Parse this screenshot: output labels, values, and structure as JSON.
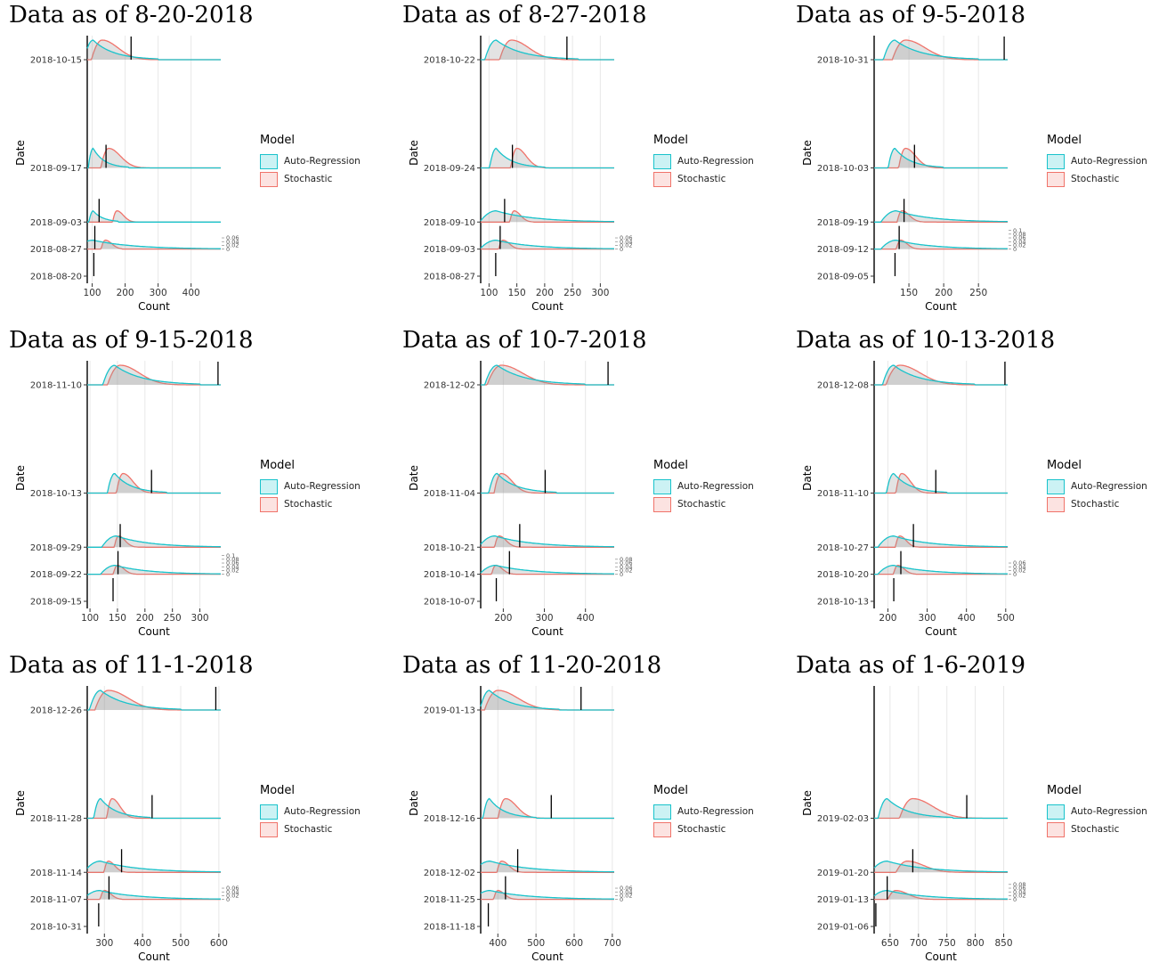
{
  "colors": {
    "auto_regression": "#19c3cb",
    "stochastic": "#f0736a",
    "observed": "#000000",
    "grid": "#e8e8e8"
  },
  "chart_data": [
    {
      "type": "ridgeline-density",
      "title": "Data as of 8-20-2018",
      "xlabel": "Count",
      "ylabel": "Date",
      "legend": {
        "title": "Model",
        "entries": [
          "Auto-Regression",
          "Stochastic"
        ],
        "position": "right"
      },
      "x_ticks": [
        100,
        200,
        300,
        400
      ],
      "xlim": [
        85,
        490
      ],
      "dates": [
        "2018-10-15",
        "2018-09-17",
        "2018-09-03",
        "2018-08-27",
        "2018-08-20"
      ],
      "date_offsets": [
        56,
        28,
        14,
        7,
        0
      ],
      "observed": [
        218,
        142,
        121,
        108,
        105
      ],
      "auto_regression": [
        {
          "peak": 103,
          "end": 300
        },
        {
          "peak": 103,
          "end": 210
        },
        {
          "peak": 103,
          "end": 180
        },
        {
          "peak": 103,
          "end": 490
        }
      ],
      "stochastic": [
        {
          "peak": 130,
          "end": 360
        },
        {
          "peak": 150,
          "end": 320
        },
        {
          "peak": 175,
          "end": 240
        },
        {
          "peak": 140,
          "end": 190
        }
      ],
      "density_ticks": [
        "0.06",
        "0.04",
        "0.02",
        "0"
      ]
    },
    {
      "type": "ridgeline-density",
      "title": "Data as of 8-27-2018",
      "xlabel": "Count",
      "ylabel": "Date",
      "legend": {
        "title": "Model",
        "entries": [
          "Auto-Regression",
          "Stochastic"
        ],
        "position": "right"
      },
      "x_ticks": [
        100,
        150,
        200,
        250,
        300
      ],
      "xlim": [
        85,
        325
      ],
      "dates": [
        "2018-10-22",
        "2018-09-24",
        "2018-09-10",
        "2018-09-03",
        "2018-08-27"
      ],
      "date_offsets": [
        56,
        28,
        14,
        7,
        0
      ],
      "observed": [
        240,
        142,
        128,
        120,
        112
      ],
      "auto_regression": [
        {
          "peak": 113,
          "end": 260
        },
        {
          "peak": 113,
          "end": 200
        },
        {
          "peak": 113,
          "end": 325
        },
        {
          "peak": 113,
          "end": 325
        }
      ],
      "stochastic": [
        {
          "peak": 140,
          "end": 290
        },
        {
          "peak": 150,
          "end": 230
        },
        {
          "peak": 145,
          "end": 180
        },
        {
          "peak": 125,
          "end": 160
        }
      ],
      "density_ticks": [
        "0.06",
        "0.04",
        "0.02",
        "0"
      ]
    },
    {
      "type": "ridgeline-density",
      "title": "Data as of 9-5-2018",
      "xlabel": "Count",
      "ylabel": "Date",
      "legend": {
        "title": "Model",
        "entries": [
          "Auto-Regression",
          "Stochastic"
        ],
        "position": "right"
      },
      "x_ticks": [
        150,
        200,
        250
      ],
      "xlim": [
        100,
        292
      ],
      "dates": [
        "2018-10-31",
        "2018-10-03",
        "2018-09-19",
        "2018-09-12",
        "2018-09-05"
      ],
      "date_offsets": [
        56,
        28,
        14,
        7,
        0
      ],
      "observed": [
        287,
        158,
        143,
        136,
        130
      ],
      "auto_regression": [
        {
          "peak": 130,
          "end": 250
        },
        {
          "peak": 130,
          "end": 200
        },
        {
          "peak": 132,
          "end": 292
        },
        {
          "peak": 132,
          "end": 292
        }
      ],
      "stochastic": [
        {
          "peak": 145,
          "end": 280
        },
        {
          "peak": 145,
          "end": 215
        },
        {
          "peak": 140,
          "end": 190
        },
        {
          "peak": 138,
          "end": 175
        }
      ],
      "density_ticks": [
        "0.1",
        "0.08",
        "0.06",
        "0.04",
        "0.02",
        "0"
      ]
    },
    {
      "type": "ridgeline-density",
      "title": "Data as of 9-15-2018",
      "xlabel": "Count",
      "ylabel": "Date",
      "legend": {
        "title": "Model",
        "entries": [
          "Auto-Regression",
          "Stochastic"
        ],
        "position": "right"
      },
      "x_ticks": [
        100,
        150,
        200,
        250,
        300
      ],
      "xlim": [
        95,
        338
      ],
      "dates": [
        "2018-11-10",
        "2018-10-13",
        "2018-09-29",
        "2018-09-22",
        "2018-09-15"
      ],
      "date_offsets": [
        56,
        28,
        14,
        7,
        0
      ],
      "observed": [
        333,
        212,
        155,
        151,
        142
      ],
      "auto_regression": [
        {
          "peak": 145,
          "end": 300
        },
        {
          "peak": 145,
          "end": 240
        },
        {
          "peak": 148,
          "end": 338
        },
        {
          "peak": 146,
          "end": 338
        }
      ],
      "stochastic": [
        {
          "peak": 155,
          "end": 320
        },
        {
          "peak": 160,
          "end": 245
        },
        {
          "peak": 152,
          "end": 200
        },
        {
          "peak": 150,
          "end": 185
        }
      ],
      "density_ticks": [
        "0.1",
        "0.08",
        "0.06",
        "0.04",
        "0.02",
        "0"
      ]
    },
    {
      "type": "ridgeline-density",
      "title": "Data as of 10-7-2018",
      "xlabel": "Count",
      "ylabel": "Date",
      "legend": {
        "title": "Model",
        "entries": [
          "Auto-Regression",
          "Stochastic"
        ],
        "position": "right"
      },
      "x_ticks": [
        200,
        300,
        400
      ],
      "xlim": [
        145,
        470
      ],
      "dates": [
        "2018-12-02",
        "2018-11-04",
        "2018-10-21",
        "2018-10-14",
        "2018-10-07"
      ],
      "date_offsets": [
        56,
        28,
        14,
        7,
        0
      ],
      "observed": [
        455,
        302,
        240,
        215,
        183
      ],
      "auto_regression": [
        {
          "peak": 185,
          "end": 400
        },
        {
          "peak": 185,
          "end": 330
        },
        {
          "peak": 180,
          "end": 470
        },
        {
          "peak": 182,
          "end": 470
        }
      ],
      "stochastic": [
        {
          "peak": 195,
          "end": 440
        },
        {
          "peak": 195,
          "end": 320
        },
        {
          "peak": 190,
          "end": 270
        },
        {
          "peak": 182,
          "end": 230
        }
      ],
      "density_ticks": [
        "0.08",
        "0.06",
        "0.04",
        "0.02",
        "0"
      ]
    },
    {
      "type": "ridgeline-density",
      "title": "Data as of 10-13-2018",
      "xlabel": "Count",
      "ylabel": "Date",
      "legend": {
        "title": "Model",
        "entries": [
          "Auto-Regression",
          "Stochastic"
        ],
        "position": "right"
      },
      "x_ticks": [
        200,
        300,
        400,
        500
      ],
      "xlim": [
        165,
        505
      ],
      "dates": [
        "2018-12-08",
        "2018-11-10",
        "2018-10-27",
        "2018-10-20",
        "2018-10-13"
      ],
      "date_offsets": [
        56,
        28,
        14,
        7,
        0
      ],
      "observed": [
        498,
        322,
        265,
        233,
        215
      ],
      "auto_regression": [
        {
          "peak": 215,
          "end": 420
        },
        {
          "peak": 215,
          "end": 350
        },
        {
          "peak": 215,
          "end": 505
        },
        {
          "peak": 215,
          "end": 505
        }
      ],
      "stochastic": [
        {
          "peak": 230,
          "end": 480
        },
        {
          "peak": 235,
          "end": 340
        },
        {
          "peak": 230,
          "end": 300
        },
        {
          "peak": 225,
          "end": 270
        }
      ],
      "density_ticks": [
        "0.06",
        "0.04",
        "0.02",
        "0"
      ]
    },
    {
      "type": "ridgeline-density",
      "title": "Data as of 11-1-2018",
      "xlabel": "Count",
      "ylabel": "Date",
      "legend": {
        "title": "Model",
        "entries": [
          "Auto-Regression",
          "Stochastic"
        ],
        "position": "right"
      },
      "x_ticks": [
        300,
        400,
        500,
        600
      ],
      "xlim": [
        255,
        605
      ],
      "dates": [
        "2018-12-26",
        "2018-11-28",
        "2018-11-14",
        "2018-11-07",
        "2018-10-31"
      ],
      "date_offsets": [
        56,
        28,
        14,
        7,
        0
      ],
      "observed": [
        592,
        425,
        345,
        312,
        285
      ],
      "auto_regression": [
        {
          "peak": 290,
          "end": 500
        },
        {
          "peak": 290,
          "end": 420
        },
        {
          "peak": 290,
          "end": 605
        },
        {
          "peak": 288,
          "end": 605
        }
      ],
      "stochastic": [
        {
          "peak": 310,
          "end": 560
        },
        {
          "peak": 320,
          "end": 420
        },
        {
          "peak": 310,
          "end": 380
        },
        {
          "peak": 300,
          "end": 345
        }
      ],
      "density_ticks": [
        "0.06",
        "0.04",
        "0.02",
        "0"
      ]
    },
    {
      "type": "ridgeline-density",
      "title": "Data as of 11-20-2018",
      "xlabel": "Count",
      "ylabel": "Date",
      "legend": {
        "title": "Model",
        "entries": [
          "Auto-Regression",
          "Stochastic"
        ],
        "position": "right"
      },
      "x_ticks": [
        400,
        500,
        600,
        700
      ],
      "xlim": [
        355,
        705
      ],
      "dates": [
        "2019-01-13",
        "2018-12-16",
        "2018-12-02",
        "2018-11-25",
        "2018-11-18"
      ],
      "date_offsets": [
        56,
        28,
        14,
        7,
        0
      ],
      "observed": [
        618,
        540,
        452,
        420,
        375
      ],
      "auto_regression": [
        {
          "peak": 378,
          "end": 560
        },
        {
          "peak": 378,
          "end": 500
        },
        {
          "peak": 380,
          "end": 705
        },
        {
          "peak": 380,
          "end": 705
        }
      ],
      "stochastic": [
        {
          "peak": 400,
          "end": 650
        },
        {
          "peak": 420,
          "end": 560
        },
        {
          "peak": 410,
          "end": 500
        },
        {
          "peak": 400,
          "end": 470
        }
      ],
      "density_ticks": [
        "0.06",
        "0.04",
        "0.02",
        "0"
      ]
    },
    {
      "type": "ridgeline-density",
      "title": "Data as of 1-6-2019",
      "xlabel": "Count",
      "ylabel": "Date",
      "legend": {
        "title": "Model",
        "entries": [
          "Auto-Regression",
          "Stochastic"
        ],
        "position": "right"
      },
      "x_ticks": [
        650,
        700,
        750,
        800,
        850
      ],
      "xlim": [
        622,
        857
      ],
      "dates": [
        "2019-02-03",
        "2019-01-20",
        "2019-01-13",
        "2019-01-06"
      ],
      "date_offsets": [
        28,
        14,
        7,
        0
      ],
      "observed": [
        785,
        690,
        645,
        625
      ],
      "auto_regression": [
        {
          "peak": 645,
          "end": 760
        },
        {
          "peak": 645,
          "end": 857
        },
        {
          "peak": 645,
          "end": 857
        }
      ],
      "stochastic": [
        {
          "peak": 690,
          "end": 857
        },
        {
          "peak": 680,
          "end": 820
        },
        {
          "peak": 660,
          "end": 760
        }
      ],
      "density_ticks": [
        "0.08",
        "0.06",
        "0.04",
        "0.02",
        "0"
      ]
    }
  ]
}
